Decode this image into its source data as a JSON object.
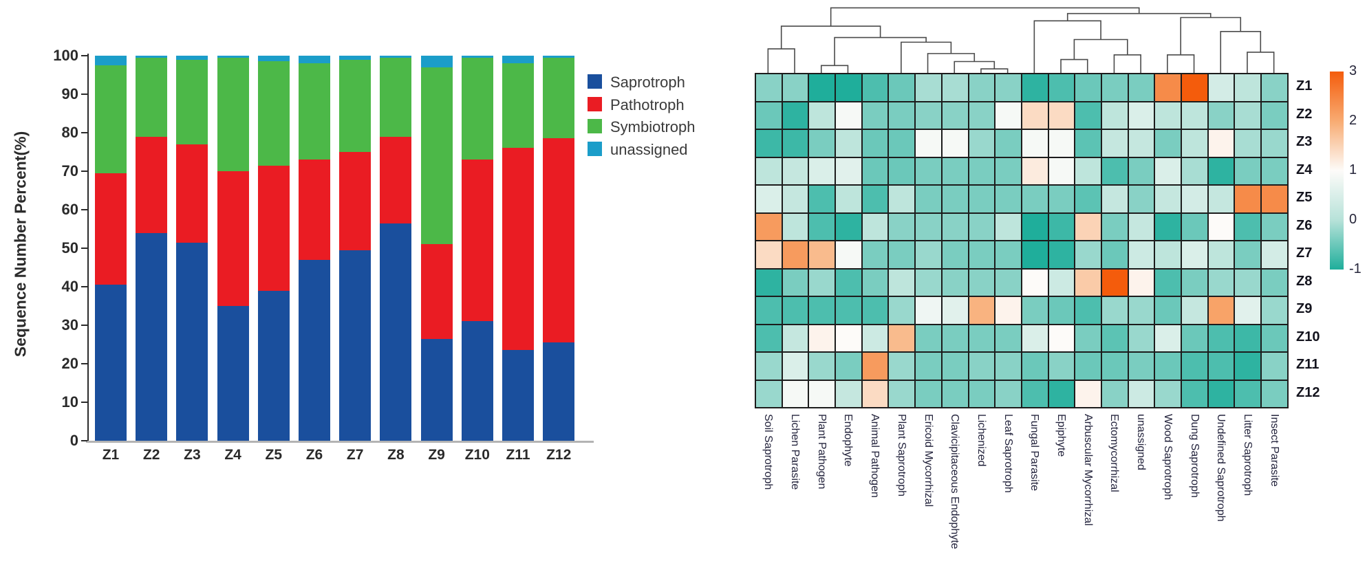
{
  "figure": {
    "background": "#ffffff",
    "description": "Two-panel fungal guild figure: stacked bar chart of trophic mode percentages and clustered heatmap of guild z-scores"
  },
  "chart_data": [
    {
      "type": "bar",
      "subtype": "stacked",
      "title": "",
      "xlabel": "",
      "ylabel": "Sequence Number Percent(%)",
      "ylim": [
        0,
        100
      ],
      "yticks": [
        0,
        10,
        20,
        30,
        40,
        50,
        60,
        70,
        80,
        90,
        100
      ],
      "grid": false,
      "legend_position": "right",
      "categories": [
        "Z1",
        "Z2",
        "Z3",
        "Z4",
        "Z5",
        "Z6",
        "Z7",
        "Z8",
        "Z9",
        "Z10",
        "Z11",
        "Z12"
      ],
      "series": [
        {
          "name": "Saprotroph",
          "color": "#1a4f9d",
          "values": [
            40.5,
            54,
            51.5,
            35,
            39,
            47,
            49.5,
            56.5,
            26.5,
            31,
            23.5,
            25.5
          ]
        },
        {
          "name": "Pathotroph",
          "color": "#ea1c23",
          "values": [
            29,
            25,
            25.5,
            35,
            32.5,
            26,
            25.5,
            22.5,
            24.5,
            42,
            52.5,
            53
          ]
        },
        {
          "name": "Symbiotroph",
          "color": "#4cb848",
          "values": [
            28,
            20.5,
            22,
            29.5,
            27,
            25,
            24,
            20.5,
            46,
            26.5,
            22,
            21
          ]
        },
        {
          "name": "unassigned",
          "color": "#1b9dc9",
          "values": [
            2.5,
            0.5,
            1,
            0.5,
            1.5,
            2,
            1,
            0.5,
            3,
            0.5,
            2,
            0.5
          ]
        }
      ]
    },
    {
      "type": "heatmap",
      "title": "",
      "rows": [
        "Z1",
        "Z2",
        "Z3",
        "Z4",
        "Z5",
        "Z6",
        "Z7",
        "Z8",
        "Z9",
        "Z10",
        "Z11",
        "Z12"
      ],
      "columns": [
        "Soil Saprotroph",
        "Lichen Parasite",
        "Plant Pathogen",
        "Endophyte",
        "Animal Pathogen",
        "Plant Saprotroph",
        "Ericoid Mycorrhizal",
        "Clavicipitaceous Endophyte",
        "Lichenized",
        "Leaf Saprotroph",
        "Fungal Parasite",
        "Epiphyte",
        "Arbuscular Mycorrhizal",
        "Ectomycorrhizal",
        "unassigned",
        "Wood Saprotroph",
        "Dung Saprotroph",
        "Undefined Saprotroph",
        "Litter Saprotroph",
        "Insect Parasite"
      ],
      "values": [
        [
          -0.3,
          -0.3,
          -1,
          -1,
          -0.7,
          -0.5,
          -0.1,
          -0.1,
          -0.3,
          -0.3,
          -0.9,
          -0.7,
          -0.5,
          -0.4,
          -0.4,
          2.4,
          3,
          0.4,
          0.1,
          -0.3
        ],
        [
          -0.5,
          -0.9,
          0.1,
          0.9,
          -0.4,
          -0.4,
          -0.3,
          -0.3,
          -0.3,
          0.9,
          1.4,
          1.4,
          -0.7,
          0.1,
          0.5,
          0.1,
          0.1,
          -0.3,
          -0.1,
          -0.4
        ],
        [
          -0.8,
          -0.8,
          -0.4,
          0.1,
          -0.5,
          -0.5,
          0.9,
          0.9,
          -0.2,
          -0.4,
          0.9,
          0.9,
          -0.6,
          0.2,
          0.2,
          -0.4,
          0.1,
          1.1,
          -0.1,
          -0.2
        ],
        [
          0.1,
          0.2,
          0.5,
          0.6,
          -0.5,
          -0.5,
          -0.4,
          -0.4,
          -0.4,
          -0.4,
          1.2,
          0.9,
          0.1,
          -0.7,
          -0.4,
          0.5,
          -0.1,
          -0.9,
          -0.4,
          -0.4
        ],
        [
          0.5,
          0.2,
          -0.7,
          0.1,
          -0.7,
          0.1,
          -0.4,
          -0.4,
          -0.4,
          -0.4,
          -0.4,
          -0.4,
          -0.6,
          0.2,
          -0.3,
          0.2,
          0.4,
          0.2,
          2.4,
          2.4
        ],
        [
          2.2,
          0.1,
          -0.7,
          -0.9,
          0.1,
          -0.3,
          -0.3,
          -0.3,
          -0.3,
          0.1,
          -1,
          -0.8,
          1.5,
          -0.4,
          0.2,
          -0.9,
          -0.5,
          1,
          -0.7,
          -0.4
        ],
        [
          1.4,
          2.2,
          1.8,
          0.9,
          -0.4,
          -0.4,
          -0.2,
          -0.4,
          -0.4,
          -0.4,
          -1,
          -0.9,
          -0.2,
          -0.5,
          0.3,
          0.1,
          0.5,
          0.1,
          -0.4,
          0.4
        ],
        [
          -0.9,
          -0.4,
          -0.2,
          -0.7,
          -0.4,
          0.1,
          -0.2,
          -0.3,
          -0.3,
          -0.3,
          1,
          0.3,
          1.6,
          3,
          1.1,
          -0.7,
          -0.4,
          -0.2,
          -0.2,
          -0.4
        ],
        [
          -0.7,
          -0.7,
          -0.7,
          -0.7,
          -0.7,
          -0.2,
          0.8,
          0.6,
          1.9,
          1.1,
          -0.4,
          -0.5,
          -0.7,
          -0.2,
          -0.2,
          -0.5,
          0.2,
          2.1,
          0.6,
          -0.2
        ],
        [
          -0.7,
          0.2,
          1.1,
          1,
          0.3,
          1.8,
          -0.4,
          -0.4,
          -0.4,
          -0.4,
          0.5,
          1,
          -0.4,
          -0.6,
          -0.2,
          0.5,
          -0.5,
          -0.7,
          -0.8,
          -0.5
        ],
        [
          -0.2,
          0.5,
          -0.2,
          -0.4,
          2.2,
          -0.2,
          -0.4,
          -0.4,
          -0.3,
          -0.3,
          -0.5,
          -0.3,
          -0.5,
          -0.5,
          -0.4,
          -0.5,
          -0.7,
          -0.7,
          -0.9,
          -0.3
        ],
        [
          -0.2,
          0.9,
          0.9,
          0.2,
          1.4,
          -0.2,
          -0.4,
          -0.4,
          -0.4,
          -0.3,
          -0.7,
          -0.9,
          1.1,
          -0.3,
          0.3,
          -0.2,
          -0.7,
          -0.9,
          -0.7,
          -0.4
        ]
      ],
      "color_scale": {
        "min": -1,
        "max": 3,
        "ticks": [
          "3",
          "2",
          "1",
          "0",
          "-1"
        ],
        "tick_values": [
          3,
          2,
          1,
          0,
          -1
        ],
        "stops": [
          {
            "value": -1,
            "color": "#1fae9b"
          },
          {
            "value": 0,
            "color": "#b7e2d9"
          },
          {
            "value": 1,
            "color": "#fdfbf9"
          },
          {
            "value": 2,
            "color": "#f8ab72"
          },
          {
            "value": 3,
            "color": "#f45c0c"
          }
        ]
      },
      "cell_border_color": "#1c1c1c",
      "dendrogram_color": "#4a4a4a",
      "column_dendrogram": {
        "merges": [
          {
            "a": "L8",
            "b": "L9",
            "h": 0.06
          },
          {
            "a": "L7",
            "b": "M0",
            "h": 0.17
          },
          {
            "a": "L6",
            "b": "M1",
            "h": 0.29
          },
          {
            "a": "L5",
            "b": "M2",
            "h": 0.46
          },
          {
            "a": "L2",
            "b": "L3",
            "h": 0.11
          },
          {
            "a": "M4",
            "b": "M3",
            "h": 0.53
          },
          {
            "a": "L0",
            "b": "L1",
            "h": 0.36
          },
          {
            "a": "M6",
            "b": "M5",
            "h": 0.7
          },
          {
            "a": "L11",
            "b": "L12",
            "h": 0.2
          },
          {
            "a": "L13",
            "b": "L14",
            "h": 0.27
          },
          {
            "a": "M8",
            "b": "M9",
            "h": 0.5
          },
          {
            "a": "L10",
            "b": "M10",
            "h": 0.78
          },
          {
            "a": "L15",
            "b": "L16",
            "h": 0.27
          },
          {
            "a": "L18",
            "b": "L19",
            "h": 0.31
          },
          {
            "a": "L17",
            "b": "M13",
            "h": 0.62
          },
          {
            "a": "M12",
            "b": "M14",
            "h": 0.83
          },
          {
            "a": "M11",
            "b": "M15",
            "h": 0.89
          },
          {
            "a": "M7",
            "b": "M16",
            "h": 0.975
          }
        ]
      }
    }
  ]
}
